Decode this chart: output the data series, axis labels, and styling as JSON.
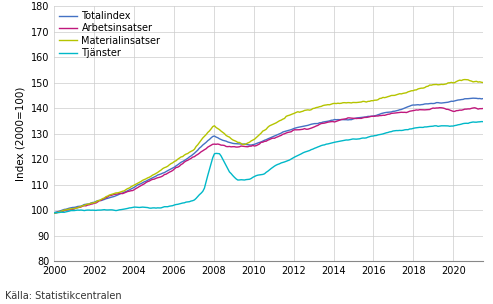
{
  "title": "",
  "ylabel": "Index (2000=100)",
  "xlabel": "",
  "source": "Källa: Statistikcentralen",
  "ylim": [
    80,
    180
  ],
  "yticks": [
    80,
    90,
    100,
    110,
    120,
    130,
    140,
    150,
    160,
    170,
    180
  ],
  "xlim": [
    2000,
    2021.5
  ],
  "xticks": [
    2000,
    2002,
    2004,
    2006,
    2008,
    2010,
    2012,
    2014,
    2016,
    2018,
    2020
  ],
  "legend_labels": [
    "Totalindex",
    "Arbetsinsatser",
    "Materialinsatser",
    "Tjänster"
  ],
  "colors": {
    "Totalindex": "#4472c4",
    "Arbetsinsatser": "#c0187c",
    "Materialinsatser": "#b5c400",
    "Tjanster": "#00b8c8"
  },
  "linewidth": 1.0,
  "background_color": "#ffffff",
  "grid_color": "#cccccc"
}
